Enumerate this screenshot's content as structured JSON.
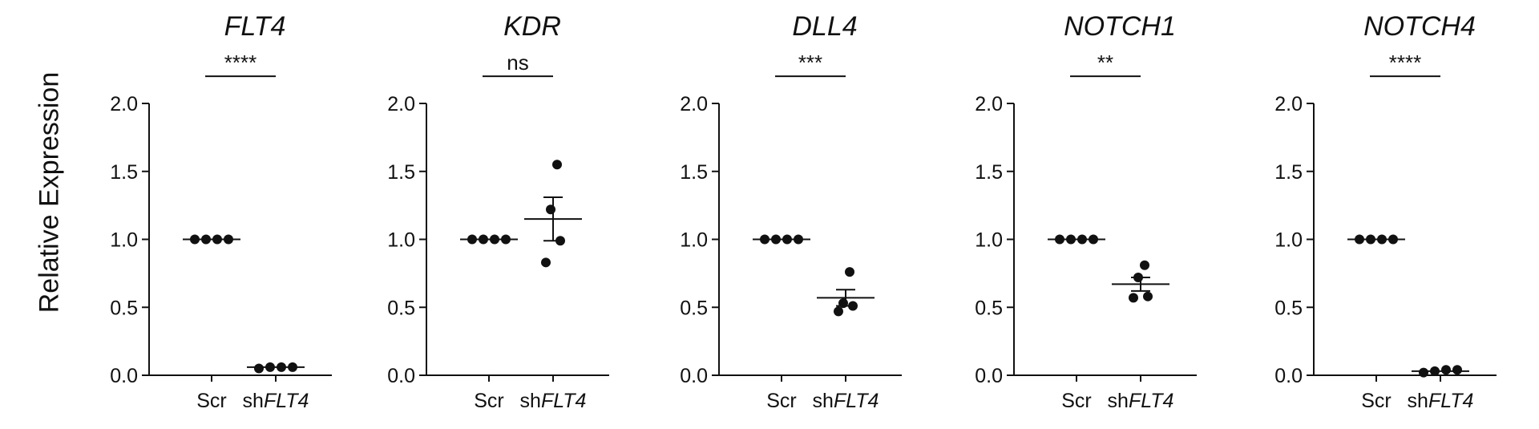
{
  "figure": {
    "ylabel": "Relative Expression",
    "colors": {
      "axis": "#111111",
      "point": "#111111",
      "background": "#ffffff"
    }
  },
  "chart_data": [
    {
      "type": "scatter",
      "title": "FLT4",
      "categories": [
        {
          "parts": [
            {
              "text": "Scr",
              "italic": false
            }
          ]
        },
        {
          "parts": [
            {
              "text": "sh",
              "italic": false
            },
            {
              "text": "FLT4",
              "italic": true
            }
          ]
        }
      ],
      "points": [
        [
          1.0,
          1.0,
          1.0,
          1.0
        ],
        [
          0.05,
          0.06,
          0.06,
          0.06
        ]
      ],
      "means": [
        1.0,
        0.06
      ],
      "sem": [
        0.0,
        0.0
      ],
      "significance": "****",
      "ylim": [
        0,
        2.0
      ],
      "yticks": [
        "0.0",
        "0.5",
        "1.0",
        "1.5",
        "2.0"
      ],
      "ylabel": "Relative Expression"
    },
    {
      "type": "scatter",
      "title": "KDR",
      "categories": [
        {
          "parts": [
            {
              "text": "Scr",
              "italic": false
            }
          ]
        },
        {
          "parts": [
            {
              "text": "sh",
              "italic": false
            },
            {
              "text": "FLT4",
              "italic": true
            }
          ]
        }
      ],
      "points": [
        [
          1.0,
          1.0,
          1.0,
          1.0
        ],
        [
          0.83,
          0.99,
          1.22,
          1.55
        ]
      ],
      "means": [
        1.0,
        1.15
      ],
      "sem": [
        0.0,
        0.16
      ],
      "significance": "ns",
      "ylim": [
        0,
        2.0
      ],
      "yticks": [
        "0.0",
        "0.5",
        "1.0",
        "1.5",
        "2.0"
      ]
    },
    {
      "type": "scatter",
      "title": "DLL4",
      "categories": [
        {
          "parts": [
            {
              "text": "Scr",
              "italic": false
            }
          ]
        },
        {
          "parts": [
            {
              "text": "sh",
              "italic": false
            },
            {
              "text": "FLT4",
              "italic": true
            }
          ]
        }
      ],
      "points": [
        [
          1.0,
          1.0,
          1.0,
          1.0
        ],
        [
          0.47,
          0.51,
          0.53,
          0.76
        ]
      ],
      "means": [
        1.0,
        0.57
      ],
      "sem": [
        0.0,
        0.06
      ],
      "significance": "***",
      "ylim": [
        0,
        2.0
      ],
      "yticks": [
        "0.0",
        "0.5",
        "1.0",
        "1.5",
        "2.0"
      ]
    },
    {
      "type": "scatter",
      "title": "NOTCH1",
      "categories": [
        {
          "parts": [
            {
              "text": "Scr",
              "italic": false
            }
          ]
        },
        {
          "parts": [
            {
              "text": "sh",
              "italic": false
            },
            {
              "text": "FLT4",
              "italic": true
            }
          ]
        }
      ],
      "points": [
        [
          1.0,
          1.0,
          1.0,
          1.0
        ],
        [
          0.57,
          0.58,
          0.72,
          0.81
        ]
      ],
      "means": [
        1.0,
        0.67
      ],
      "sem": [
        0.0,
        0.05
      ],
      "significance": "**",
      "ylim": [
        0,
        2.0
      ],
      "yticks": [
        "0.0",
        "0.5",
        "1.0",
        "1.5",
        "2.0"
      ]
    },
    {
      "type": "scatter",
      "title": "NOTCH4",
      "categories": [
        {
          "parts": [
            {
              "text": "Scr",
              "italic": false
            }
          ]
        },
        {
          "parts": [
            {
              "text": "sh",
              "italic": false
            },
            {
              "text": "FLT4",
              "italic": true
            }
          ]
        }
      ],
      "points": [
        [
          1.0,
          1.0,
          1.0,
          1.0
        ],
        [
          0.02,
          0.03,
          0.04,
          0.04
        ]
      ],
      "means": [
        1.0,
        0.03
      ],
      "sem": [
        0.0,
        0.0
      ],
      "significance": "****",
      "ylim": [
        0,
        2.0
      ],
      "yticks": [
        "0.0",
        "0.5",
        "1.0",
        "1.5",
        "2.0"
      ]
    }
  ]
}
